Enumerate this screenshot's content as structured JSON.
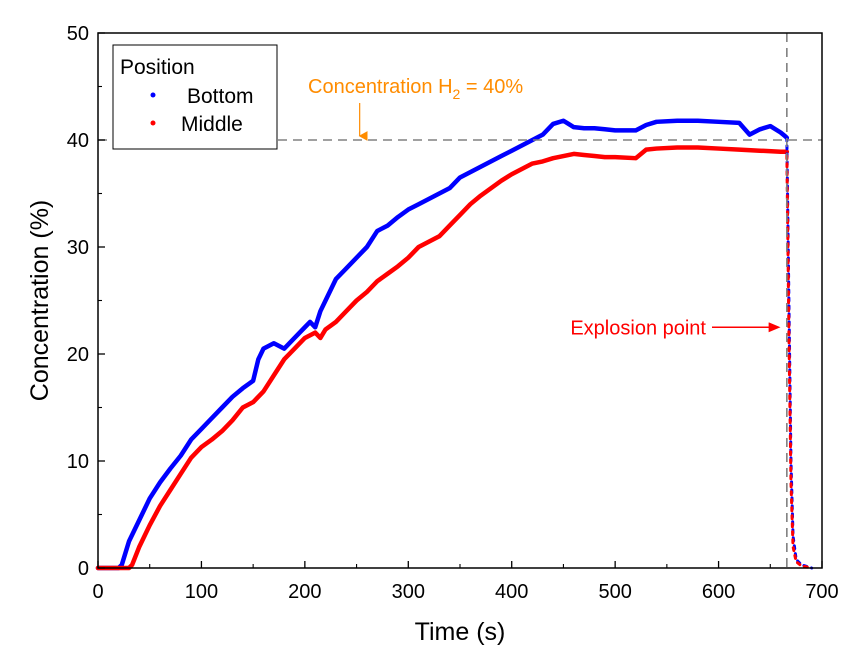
{
  "chart_data": {
    "type": "line",
    "xlabel": "Time (s)",
    "ylabel": "Concentration (%)",
    "xlim": [
      0,
      700
    ],
    "ylim": [
      0,
      50
    ],
    "x_ticks": [
      0,
      100,
      200,
      300,
      400,
      500,
      600,
      700
    ],
    "y_ticks": [
      0,
      10,
      20,
      30,
      40,
      50
    ],
    "x_tick_labels": [
      "0",
      "100",
      "200",
      "300",
      "400",
      "500",
      "600",
      "700"
    ],
    "y_tick_labels": [
      "0",
      "10",
      "20",
      "30",
      "40",
      "50"
    ],
    "grid": false,
    "legend": {
      "title": "Position",
      "placement": "top-left",
      "entries": [
        {
          "label": "Bottom",
          "color": "#0000ff"
        },
        {
          "label": "Middle",
          "color": "#ff0000"
        }
      ]
    },
    "reference_lines": [
      {
        "orientation": "horizontal",
        "value": 40,
        "style": "dashed",
        "color": "#808080"
      },
      {
        "orientation": "vertical",
        "value": 666,
        "style": "dashed",
        "color": "#808080"
      }
    ],
    "annotations": [
      {
        "text_main": "Concentration H",
        "text_sub": "2",
        "text_tail": " = 40%",
        "color": "#ff8c00",
        "arrow_to": [
          253,
          40
        ]
      },
      {
        "text": "Explosion point",
        "color": "#ff0000",
        "arrow_to": [
          660,
          22.5
        ]
      }
    ],
    "series": [
      {
        "name": "Bottom",
        "color": "#0000ff",
        "x": [
          0,
          20,
          23,
          30,
          40,
          50,
          60,
          70,
          80,
          90,
          100,
          110,
          120,
          130,
          140,
          150,
          155,
          160,
          170,
          180,
          190,
          200,
          205,
          210,
          215,
          220,
          230,
          240,
          250,
          260,
          270,
          280,
          290,
          300,
          310,
          320,
          330,
          340,
          350,
          360,
          370,
          380,
          390,
          400,
          410,
          420,
          430,
          440,
          450,
          455,
          460,
          470,
          480,
          490,
          500,
          520,
          530,
          540,
          560,
          580,
          600,
          620,
          630,
          640,
          650,
          660,
          665,
          666
        ],
        "y": [
          0,
          0,
          0.3,
          2.5,
          4.5,
          6.5,
          8.0,
          9.3,
          10.5,
          12.0,
          13.0,
          14.0,
          15.0,
          16.0,
          16.8,
          17.5,
          19.5,
          20.5,
          21.0,
          20.5,
          21.5,
          22.5,
          23.0,
          22.5,
          24.0,
          25.0,
          27.0,
          28.0,
          29.0,
          30.0,
          31.5,
          32.0,
          32.8,
          33.5,
          34.0,
          34.5,
          35.0,
          35.5,
          36.5,
          37.0,
          37.5,
          38.0,
          38.5,
          39.0,
          39.5,
          40.0,
          40.5,
          41.5,
          41.8,
          41.5,
          41.2,
          41.1,
          41.1,
          41.0,
          40.9,
          40.9,
          41.4,
          41.7,
          41.8,
          41.8,
          41.7,
          41.6,
          40.5,
          41.0,
          41.3,
          40.7,
          40.3,
          40.2
        ]
      },
      {
        "name": "Middle",
        "color": "#ff0000",
        "x": [
          0,
          30,
          33,
          40,
          50,
          60,
          70,
          80,
          90,
          100,
          110,
          120,
          130,
          140,
          150,
          160,
          170,
          180,
          190,
          200,
          210,
          215,
          220,
          230,
          240,
          250,
          260,
          270,
          280,
          290,
          300,
          310,
          320,
          330,
          340,
          350,
          360,
          370,
          380,
          390,
          400,
          410,
          420,
          430,
          440,
          450,
          460,
          470,
          480,
          490,
          500,
          520,
          530,
          540,
          560,
          580,
          600,
          620,
          640,
          660,
          666
        ],
        "y": [
          0,
          0,
          0.3,
          2.0,
          4.0,
          5.8,
          7.3,
          8.8,
          10.3,
          11.3,
          12.0,
          12.8,
          13.8,
          15.0,
          15.5,
          16.5,
          18.0,
          19.5,
          20.5,
          21.5,
          22.0,
          21.5,
          22.3,
          23.0,
          24.0,
          25.0,
          25.8,
          26.8,
          27.5,
          28.2,
          29.0,
          30.0,
          30.5,
          31.0,
          32.0,
          33.0,
          34.0,
          34.8,
          35.5,
          36.2,
          36.8,
          37.3,
          37.8,
          38.0,
          38.3,
          38.5,
          38.7,
          38.6,
          38.5,
          38.4,
          38.4,
          38.3,
          39.1,
          39.2,
          39.3,
          39.3,
          39.2,
          39.1,
          39.0,
          38.9,
          38.9
        ]
      },
      {
        "name": "",
        "color": "#0000ff",
        "x": [
          666,
          668,
          670,
          672,
          675,
          680,
          690
        ],
        "y": [
          40.2,
          25,
          10,
          3,
          0.8,
          0.3,
          0
        ]
      },
      {
        "name": "",
        "color": "#ff0000",
        "x": [
          666,
          668,
          670,
          672,
          675,
          680,
          690
        ],
        "y": [
          38.9,
          22,
          8,
          2,
          0.6,
          0.2,
          0
        ]
      }
    ]
  }
}
